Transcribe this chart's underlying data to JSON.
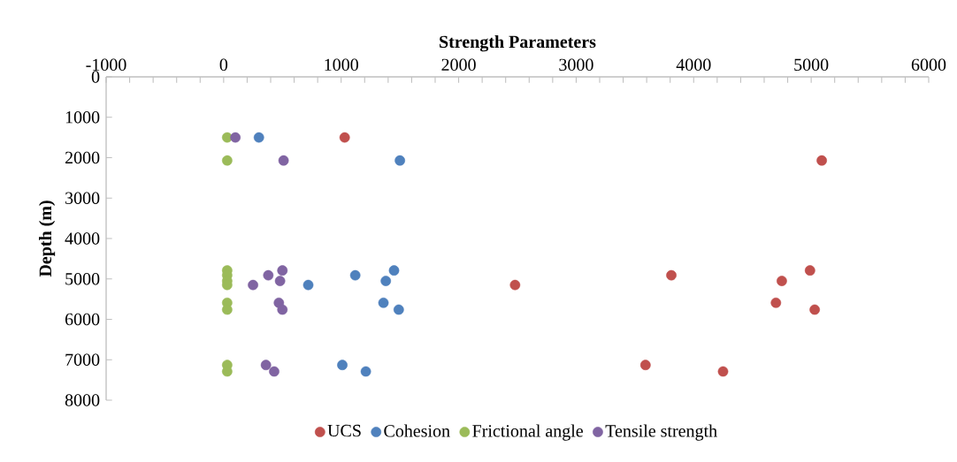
{
  "chart_data": {
    "type": "scatter",
    "xlabel": "Strength Parameters",
    "ylabel": "Depth (m)",
    "xlim": [
      -1000,
      6000
    ],
    "xticks": [
      -1000,
      0,
      1000,
      2000,
      3000,
      4000,
      5000,
      6000
    ],
    "ylim": [
      8000,
      0
    ],
    "yticks": [
      0,
      1000,
      2000,
      3000,
      4000,
      5000,
      6000,
      7000,
      8000
    ],
    "grid": false,
    "legend": "bottom",
    "marker": "circle",
    "series": [
      {
        "name": "UCS",
        "color": "#c0504d",
        "x": [
          1030,
          5090,
          4990,
          3810,
          4750,
          2480,
          4700,
          5030,
          3590,
          4250
        ],
        "values": [
          1500,
          2070,
          4790,
          4910,
          5050,
          5150,
          5590,
          5760,
          7130,
          7290
        ]
      },
      {
        "name": "Cohesion",
        "color": "#4f81bd",
        "x": [
          300,
          1500,
          1450,
          1120,
          1380,
          720,
          1360,
          1490,
          1010,
          1210
        ],
        "values": [
          1500,
          2070,
          4790,
          4910,
          5050,
          5150,
          5590,
          5760,
          7130,
          7290
        ]
      },
      {
        "name": "Frictional angle",
        "color": "#9bbb59",
        "x": [
          30,
          30,
          30,
          30,
          30,
          30,
          30,
          30,
          30,
          30
        ],
        "values": [
          1500,
          2070,
          4790,
          4910,
          5050,
          5150,
          5590,
          5760,
          7130,
          7290
        ]
      },
      {
        "name": "Tensile strength",
        "color": "#8064a2",
        "x": [
          100,
          510,
          500,
          380,
          480,
          250,
          470,
          500,
          360,
          430
        ],
        "values": [
          1500,
          2070,
          4790,
          4910,
          5050,
          5150,
          5590,
          5760,
          7130,
          7290
        ]
      }
    ]
  }
}
